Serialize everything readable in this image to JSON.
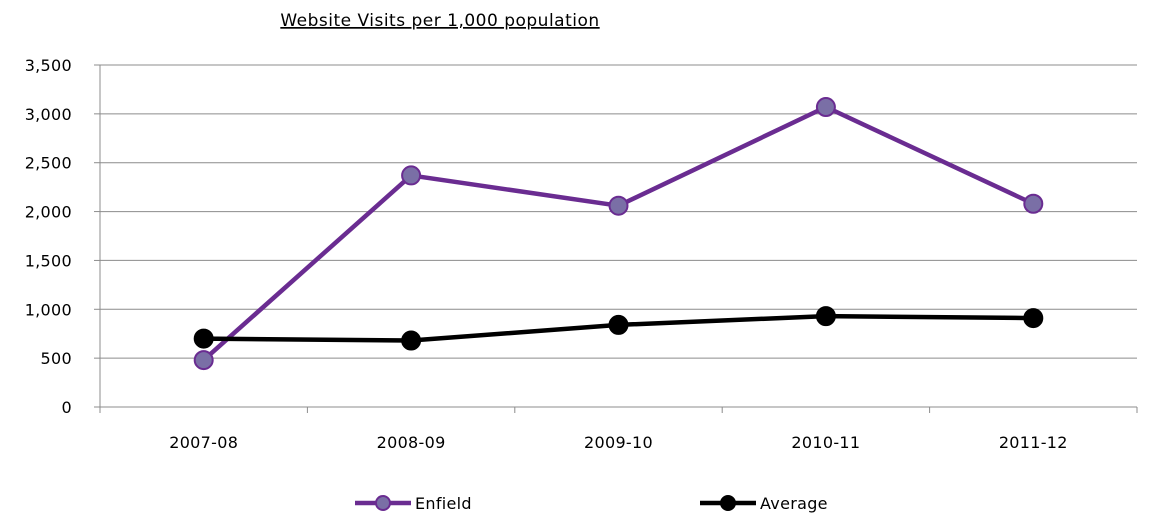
{
  "chart_data": {
    "type": "line",
    "title": "Website Visits per 1,000 population",
    "xlabel": "",
    "ylabel": "",
    "categories": [
      "2007-08",
      "2008-09",
      "2009-10",
      "2010-11",
      "2011-12"
    ],
    "y_ticks": [
      "0",
      "500",
      "1,000",
      "1,500",
      "2,000",
      "2,500",
      "3,000",
      "3,500"
    ],
    "ylim": [
      0,
      3500
    ],
    "grid": true,
    "legend_position": "bottom",
    "series": [
      {
        "name": "Enfield",
        "values": [
          480,
          2370,
          2060,
          3070,
          2080
        ],
        "color": "#6a2c91",
        "marker_fill": "#7a6fa6"
      },
      {
        "name": "Average",
        "values": [
          700,
          680,
          840,
          930,
          910
        ],
        "color": "#000000",
        "marker_fill": "#000000"
      }
    ]
  }
}
